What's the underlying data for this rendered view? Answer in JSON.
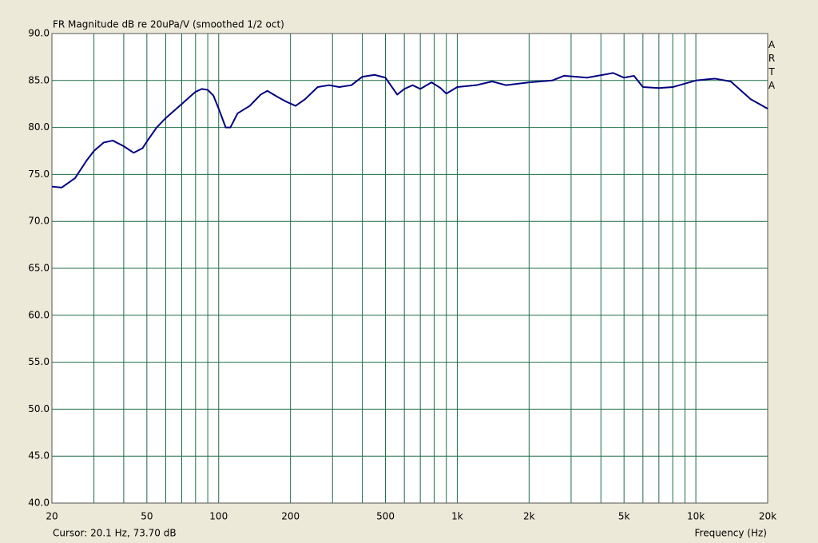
{
  "chart_data": {
    "type": "line",
    "title": "FR Magnitude dB re 20uPa/V (smoothed 1/2 oct)",
    "watermark": "ARTA",
    "cursor_readout": "Cursor: 20.1 Hz, 73.70 dB",
    "xlabel": "Frequency (Hz)",
    "xscale": "log",
    "grid": true,
    "xlim": [
      20,
      20000
    ],
    "ylim": [
      40,
      90
    ],
    "xticks": [
      20,
      50,
      100,
      200,
      500,
      {
        "value": 1000,
        "label": "1k"
      },
      {
        "value": 2000,
        "label": "2k"
      },
      {
        "value": 5000,
        "label": "5k"
      },
      {
        "value": 10000,
        "label": "10k"
      },
      {
        "value": 20000,
        "label": "20k"
      }
    ],
    "minor_xticks": [
      30,
      40,
      60,
      70,
      80,
      90,
      300,
      400,
      600,
      700,
      800,
      900,
      3000,
      4000,
      6000,
      7000,
      8000,
      9000
    ],
    "yticks": [
      {
        "value": 40,
        "label": "40.0"
      },
      {
        "value": 45,
        "label": "45.0"
      },
      {
        "value": 50,
        "label": "50.0"
      },
      {
        "value": 55,
        "label": "55.0"
      },
      {
        "value": 60,
        "label": "60.0"
      },
      {
        "value": 65,
        "label": "65.0"
      },
      {
        "value": 70,
        "label": "70.0"
      },
      {
        "value": 75,
        "label": "75.0"
      },
      {
        "value": 80,
        "label": "80.0"
      },
      {
        "value": 85,
        "label": "85.0"
      },
      {
        "value": 90,
        "label": "90.0"
      }
    ],
    "x": [
      20,
      22,
      25,
      28,
      30,
      33,
      36,
      40,
      44,
      48,
      50,
      55,
      60,
      70,
      80,
      85,
      90,
      95,
      100,
      107,
      112,
      120,
      135,
      150,
      160,
      175,
      190,
      210,
      230,
      260,
      290,
      320,
      360,
      400,
      450,
      500,
      560,
      600,
      650,
      700,
      780,
      850,
      900,
      1000,
      1200,
      1400,
      1600,
      2000,
      2500,
      2800,
      3500,
      4500,
      5000,
      5500,
      6000,
      7000,
      8000,
      10000,
      12000,
      14000,
      17000,
      20000
    ],
    "series": [
      {
        "color": "#000080",
        "values": [
          73.7,
          73.6,
          74.6,
          76.5,
          77.5,
          78.4,
          78.6,
          78.0,
          77.3,
          77.8,
          78.5,
          80.0,
          81.0,
          82.5,
          83.8,
          84.1,
          84.0,
          83.4,
          82.0,
          80.0,
          80.0,
          81.5,
          82.3,
          83.5,
          83.9,
          83.3,
          82.8,
          82.3,
          83.0,
          84.3,
          84.5,
          84.3,
          84.5,
          85.4,
          85.6,
          85.3,
          83.5,
          84.1,
          84.5,
          84.1,
          84.8,
          84.2,
          83.6,
          84.3,
          84.5,
          84.9,
          84.5,
          84.8,
          85.0,
          85.5,
          85.3,
          85.8,
          85.3,
          85.5,
          84.3,
          84.2,
          84.3,
          85.0,
          85.2,
          84.9,
          83.0,
          82.0
        ]
      }
    ]
  }
}
